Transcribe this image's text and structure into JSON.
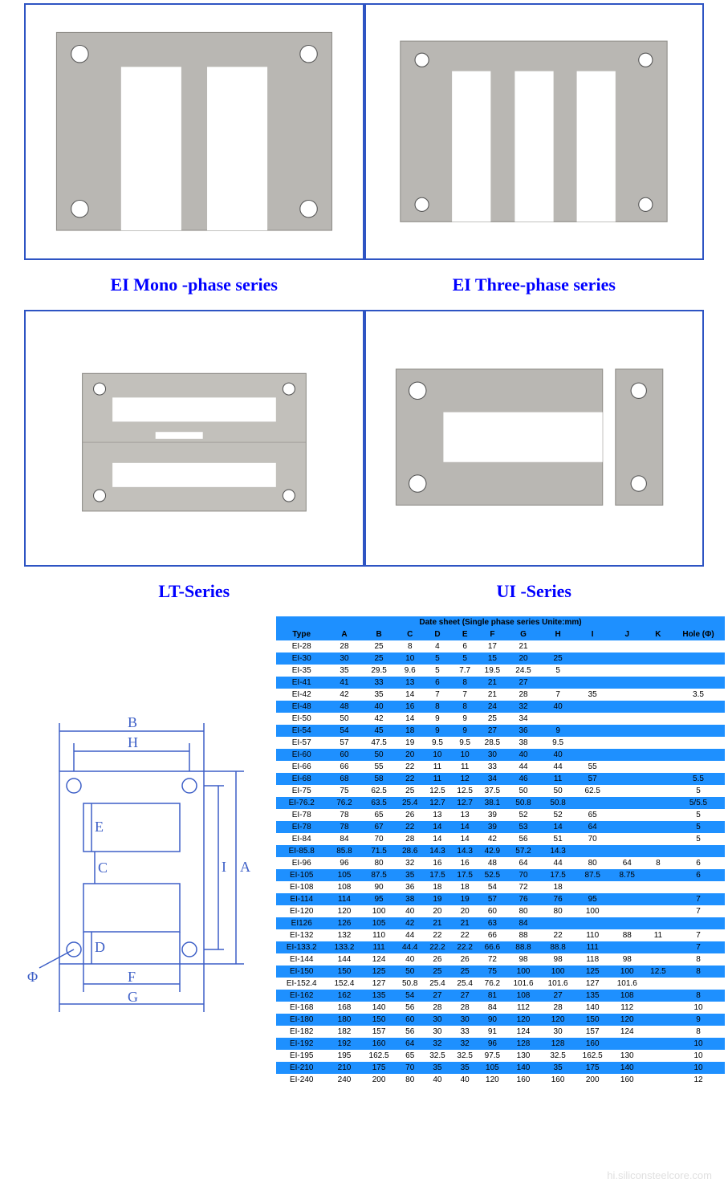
{
  "captions": {
    "mono": "EI Mono -phase series",
    "three": "EI Three-phase series",
    "lt": "LT-Series",
    "ui": "UI -Series"
  },
  "colors": {
    "card_border": "#2e54c3",
    "caption_color": "#0000ff",
    "metal_fill": "#b9b7b3",
    "metal_stroke": "#8f8d88",
    "hole_fill": "#ffffff",
    "hole_stroke": "#555555",
    "table_header_bg": "#1e90ff",
    "table_row_alt_bg": "#1e90ff",
    "table_row_bg": "#ffffff",
    "diagram_stroke": "#3d5fc7",
    "background": "#ffffff",
    "watermark": "#e0e0e0"
  },
  "typography": {
    "caption_fontsize": 22,
    "caption_weight": "bold",
    "table_fontsize": 10
  },
  "table": {
    "title": "Date sheet    (Single phase series Unite:mm)",
    "columns": [
      "Type",
      "A",
      "B",
      "C",
      "D",
      "E",
      "F",
      "G",
      "H",
      "I",
      "J",
      "K",
      "Hole (Φ)"
    ],
    "rows": [
      [
        "EI-28",
        "28",
        "25",
        "8",
        "4",
        "6",
        "17",
        "21",
        "",
        "",
        "",
        "",
        ""
      ],
      [
        "EI-30",
        "30",
        "25",
        "10",
        "5",
        "5",
        "15",
        "20",
        "25",
        "",
        "",
        "",
        ""
      ],
      [
        "EI-35",
        "35",
        "29.5",
        "9.6",
        "5",
        "7.7",
        "19.5",
        "24.5",
        "5",
        "",
        "",
        "",
        ""
      ],
      [
        "EI-41",
        "41",
        "33",
        "13",
        "6",
        "8",
        "21",
        "27",
        "",
        "",
        "",
        "",
        ""
      ],
      [
        "EI-42",
        "42",
        "35",
        "14",
        "7",
        "7",
        "21",
        "28",
        "7",
        "35",
        "",
        "",
        "3.5"
      ],
      [
        "EI-48",
        "48",
        "40",
        "16",
        "8",
        "8",
        "24",
        "32",
        "40",
        "",
        "",
        "",
        ""
      ],
      [
        "EI-50",
        "50",
        "42",
        "14",
        "9",
        "9",
        "25",
        "34",
        "",
        "",
        "",
        "",
        ""
      ],
      [
        "EI-54",
        "54",
        "45",
        "18",
        "9",
        "9",
        "27",
        "36",
        "9",
        "",
        "",
        "",
        ""
      ],
      [
        "EI-57",
        "57",
        "47.5",
        "19",
        "9.5",
        "9.5",
        "28.5",
        "38",
        "9.5",
        "",
        "",
        "",
        ""
      ],
      [
        "EI-60",
        "60",
        "50",
        "20",
        "10",
        "10",
        "30",
        "40",
        "40",
        "",
        "",
        "",
        ""
      ],
      [
        "EI-66",
        "66",
        "55",
        "22",
        "11",
        "11",
        "33",
        "44",
        "44",
        "55",
        "",
        "",
        ""
      ],
      [
        "EI-68",
        "68",
        "58",
        "22",
        "11",
        "12",
        "34",
        "46",
        "11",
        "57",
        "",
        "",
        "5.5"
      ],
      [
        "EI-75",
        "75",
        "62.5",
        "25",
        "12.5",
        "12.5",
        "37.5",
        "50",
        "50",
        "62.5",
        "",
        "",
        "5"
      ],
      [
        "EI-76.2",
        "76.2",
        "63.5",
        "25.4",
        "12.7",
        "12.7",
        "38.1",
        "50.8",
        "50.8",
        "",
        "",
        "",
        "5/5.5"
      ],
      [
        "EI-78",
        "78",
        "65",
        "26",
        "13",
        "13",
        "39",
        "52",
        "52",
        "65",
        "",
        "",
        "5"
      ],
      [
        "EI-78",
        "78",
        "67",
        "22",
        "14",
        "14",
        "39",
        "53",
        "14",
        "64",
        "",
        "",
        "5"
      ],
      [
        "EI-84",
        "84",
        "70",
        "28",
        "14",
        "14",
        "42",
        "56",
        "51",
        "70",
        "",
        "",
        "5"
      ],
      [
        "EI-85.8",
        "85.8",
        "71.5",
        "28.6",
        "14.3",
        "14.3",
        "42.9",
        "57.2",
        "14.3",
        "",
        "",
        "",
        ""
      ],
      [
        "EI-96",
        "96",
        "80",
        "32",
        "16",
        "16",
        "48",
        "64",
        "44",
        "80",
        "64",
        "8",
        "6"
      ],
      [
        "EI-105",
        "105",
        "87.5",
        "35",
        "17.5",
        "17.5",
        "52.5",
        "70",
        "17.5",
        "87.5",
        "8.75",
        "",
        "6"
      ],
      [
        "EI-108",
        "108",
        "90",
        "36",
        "18",
        "18",
        "54",
        "72",
        "18",
        "",
        "",
        "",
        ""
      ],
      [
        "EI-114",
        "114",
        "95",
        "38",
        "19",
        "19",
        "57",
        "76",
        "76",
        "95",
        "",
        "",
        "7"
      ],
      [
        "EI-120",
        "120",
        "100",
        "40",
        "20",
        "20",
        "60",
        "80",
        "80",
        "100",
        "",
        "",
        "7"
      ],
      [
        "EI126",
        "126",
        "105",
        "42",
        "21",
        "21",
        "63",
        "84",
        "",
        "",
        "",
        "",
        ""
      ],
      [
        "EI-132",
        "132",
        "110",
        "44",
        "22",
        "22",
        "66",
        "88",
        "22",
        "110",
        "88",
        "11",
        "7"
      ],
      [
        "EI-133.2",
        "133.2",
        "111",
        "44.4",
        "22.2",
        "22.2",
        "66.6",
        "88.8",
        "88.8",
        "111",
        "",
        "",
        "7"
      ],
      [
        "EI-144",
        "144",
        "124",
        "40",
        "26",
        "26",
        "72",
        "98",
        "98",
        "118",
        "98",
        "",
        "8"
      ],
      [
        "EI-150",
        "150",
        "125",
        "50",
        "25",
        "25",
        "75",
        "100",
        "100",
        "125",
        "100",
        "12.5",
        "8"
      ],
      [
        "EI-152.4",
        "152.4",
        "127",
        "50.8",
        "25.4",
        "25.4",
        "76.2",
        "101.6",
        "101.6",
        "127",
        "101.6",
        "",
        ""
      ],
      [
        "EI-162",
        "162",
        "135",
        "54",
        "27",
        "27",
        "81",
        "108",
        "27",
        "135",
        "108",
        "",
        "8"
      ],
      [
        "EI-168",
        "168",
        "140",
        "56",
        "28",
        "28",
        "84",
        "112",
        "28",
        "140",
        "112",
        "",
        "10"
      ],
      [
        "EI-180",
        "180",
        "150",
        "60",
        "30",
        "30",
        "90",
        "120",
        "120",
        "150",
        "120",
        "",
        "9"
      ],
      [
        "EI-182",
        "182",
        "157",
        "56",
        "30",
        "33",
        "91",
        "124",
        "30",
        "157",
        "124",
        "",
        "8"
      ],
      [
        "EI-192",
        "192",
        "160",
        "64",
        "32",
        "32",
        "96",
        "128",
        "128",
        "160",
        "",
        "",
        "10"
      ],
      [
        "EI-195",
        "195",
        "162.5",
        "65",
        "32.5",
        "32.5",
        "97.5",
        "130",
        "32.5",
        "162.5",
        "130",
        "",
        "10"
      ],
      [
        "EI-210",
        "210",
        "175",
        "70",
        "35",
        "35",
        "105",
        "140",
        "35",
        "175",
        "140",
        "",
        "10"
      ],
      [
        "EI-240",
        "240",
        "200",
        "80",
        "40",
        "40",
        "120",
        "160",
        "160",
        "200",
        "160",
        "",
        "12"
      ]
    ]
  },
  "diagram": {
    "labels": [
      "A",
      "B",
      "C",
      "D",
      "E",
      "F",
      "G",
      "H",
      "I"
    ],
    "phi": "Φ"
  },
  "watermark": "hi.siliconsteelcore.com"
}
